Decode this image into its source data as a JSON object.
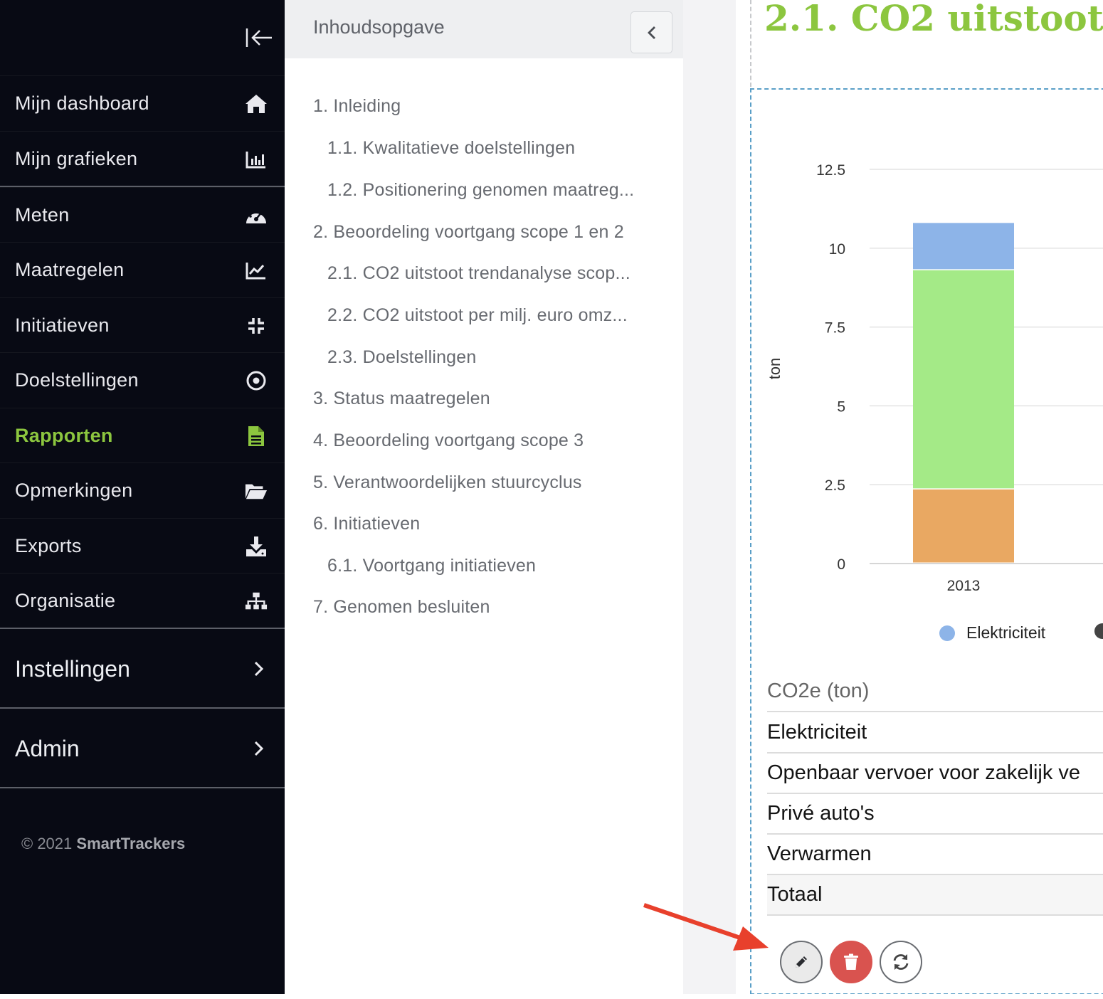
{
  "sidebar": {
    "items": [
      {
        "label": "Mijn dashboard",
        "icon": "home-icon"
      },
      {
        "label": "Mijn grafieken",
        "icon": "bar-chart-icon"
      },
      {
        "label": "Meten",
        "icon": "gauge-icon"
      },
      {
        "label": "Maatregelen",
        "icon": "line-chart-icon"
      },
      {
        "label": "Initiatieven",
        "icon": "compress-icon"
      },
      {
        "label": "Doelstellingen",
        "icon": "target-icon"
      },
      {
        "label": "Rapporten",
        "icon": "document-icon",
        "active": true
      },
      {
        "label": "Opmerkingen",
        "icon": "folder-open-icon"
      },
      {
        "label": "Exports",
        "icon": "download-icon"
      },
      {
        "label": "Organisatie",
        "icon": "sitemap-icon"
      }
    ],
    "instellingen_label": "Instellingen",
    "admin_label": "Admin",
    "copyright_prefix": "© 2021",
    "copyright_brand": "SmartTrackers",
    "accent_color": "#8cc63f"
  },
  "toc": {
    "title": "Inhoudsopgave",
    "items": [
      {
        "label": "1. Inleiding",
        "level": 1
      },
      {
        "label": "1.1. Kwalitatieve doelstellingen",
        "level": 2
      },
      {
        "label": "1.2. Positionering genomen maatreg...",
        "level": 2
      },
      {
        "label": "2. Beoordeling voortgang scope 1 en 2",
        "level": 1
      },
      {
        "label": "2.1. CO2 uitstoot trendanalyse scop...",
        "level": 2
      },
      {
        "label": "2.2. CO2 uitstoot per milj. euro omz...",
        "level": 2
      },
      {
        "label": "2.3. Doelstellingen",
        "level": 2
      },
      {
        "label": "3. Status maatregelen",
        "level": 1
      },
      {
        "label": "4. Beoordeling voortgang scope 3",
        "level": 1
      },
      {
        "label": "5. Verantwoordelijken stuurcyclus",
        "level": 1
      },
      {
        "label": "6. Initiatieven",
        "level": 1
      },
      {
        "label": "6.1. Voortgang initiatieven",
        "level": 2
      },
      {
        "label": "7. Genomen besluiten",
        "level": 1
      }
    ]
  },
  "main": {
    "section_title": "2.1. CO2 uitstoot t",
    "table": {
      "header": "CO2e (ton)",
      "rows": [
        "Elektriciteit",
        "Openbaar vervoer voor zakelijk ve",
        "Privé auto's",
        "Verwarmen"
      ],
      "total_label": "Totaal"
    },
    "actions": {
      "edit": "pencil-icon",
      "delete": "trash-icon",
      "refresh": "refresh-icon"
    }
  },
  "chart_data": {
    "type": "bar",
    "stacked": true,
    "ylabel": "ton",
    "ylim": [
      0,
      12.5
    ],
    "yticks": [
      "0",
      "2.5",
      "5",
      "7.5",
      "10",
      "12.5"
    ],
    "categories": [
      "2013"
    ],
    "series": [
      {
        "name": "",
        "color": "#e9a862",
        "values": [
          2.35
        ]
      },
      {
        "name": "",
        "color": "#a4ea87",
        "values": [
          6.95
        ]
      },
      {
        "name": "Elektriciteit",
        "color": "#8db4e8",
        "values": [
          1.5
        ]
      }
    ],
    "legend": [
      {
        "name": "Elektriciteit",
        "color": "#8db4e8"
      },
      {
        "name": "",
        "color": "#444444"
      }
    ],
    "grid": true,
    "legend_position": "bottom"
  },
  "annotation": {
    "arrow_color": "#e8402c"
  }
}
